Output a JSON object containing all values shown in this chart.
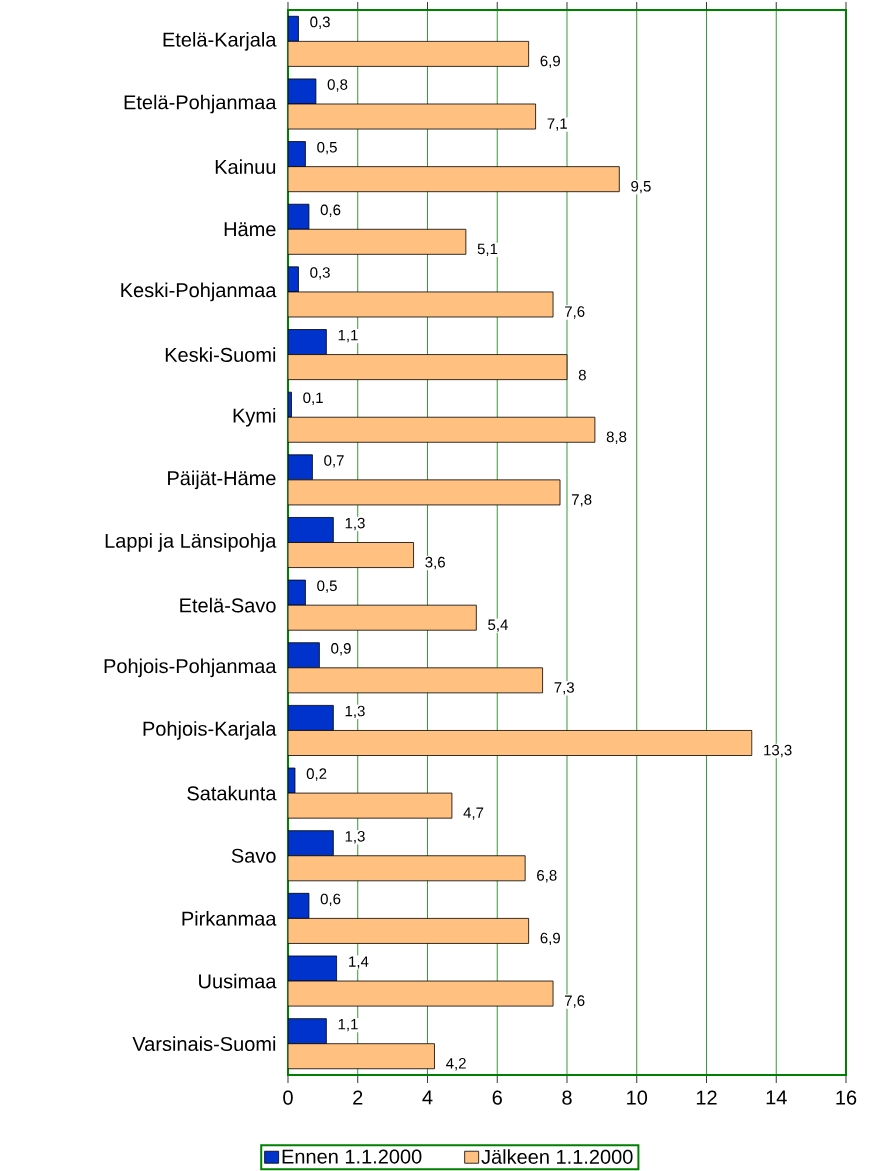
{
  "chart_data": {
    "type": "bar",
    "orientation": "horizontal",
    "categories": [
      "Etelä-Karjala",
      "Etelä-Pohjanmaa",
      "Kainuu",
      "Häme",
      "Keski-Pohjanmaa",
      "Keski-Suomi",
      "Kymi",
      "Päijät-Häme",
      "Lappi ja Länsipohja",
      "Etelä-Savo",
      "Pohjois-Pohjanmaa",
      "Pohjois-Karjala",
      "Satakunta",
      "Savo",
      "Pirkanmaa",
      "Uusimaa",
      "Varsinais-Suomi"
    ],
    "series": [
      {
        "name": "Ennen 1.1.2000",
        "color": "#0033cc",
        "values": [
          0.3,
          0.8,
          0.5,
          0.6,
          0.3,
          1.1,
          0.1,
          0.7,
          1.3,
          0.5,
          0.9,
          1.3,
          0.2,
          1.3,
          0.6,
          1.4,
          1.1
        ],
        "value_labels": [
          "0,3",
          "0,8",
          "0,5",
          "0,6",
          "0,3",
          "1,1",
          "0,1",
          "0,7",
          "1,3",
          "0,5",
          "0,9",
          "1,3",
          "0,2",
          "1,3",
          "0,6",
          "1,4",
          "1,1"
        ]
      },
      {
        "name": "Jälkeen 1.1.2000",
        "color": "#ffc080",
        "values": [
          6.9,
          7.1,
          9.5,
          5.1,
          7.6,
          8,
          8.8,
          7.8,
          3.6,
          5.4,
          7.3,
          13.3,
          4.7,
          6.8,
          6.9,
          7.6,
          4.2
        ],
        "value_labels": [
          "6,9",
          "7,1",
          "9,5",
          "5,1",
          "7,6",
          "8",
          "8,8",
          "7,8",
          "3,6",
          "5,4",
          "7,3",
          "13,3",
          "4,7",
          "6,8",
          "6,9",
          "7,6",
          "4,2"
        ]
      }
    ],
    "xlim": [
      0,
      16
    ],
    "xticks": [
      0,
      2,
      4,
      6,
      8,
      10,
      12,
      14,
      16
    ],
    "grid": "x",
    "legend": "bottom"
  }
}
